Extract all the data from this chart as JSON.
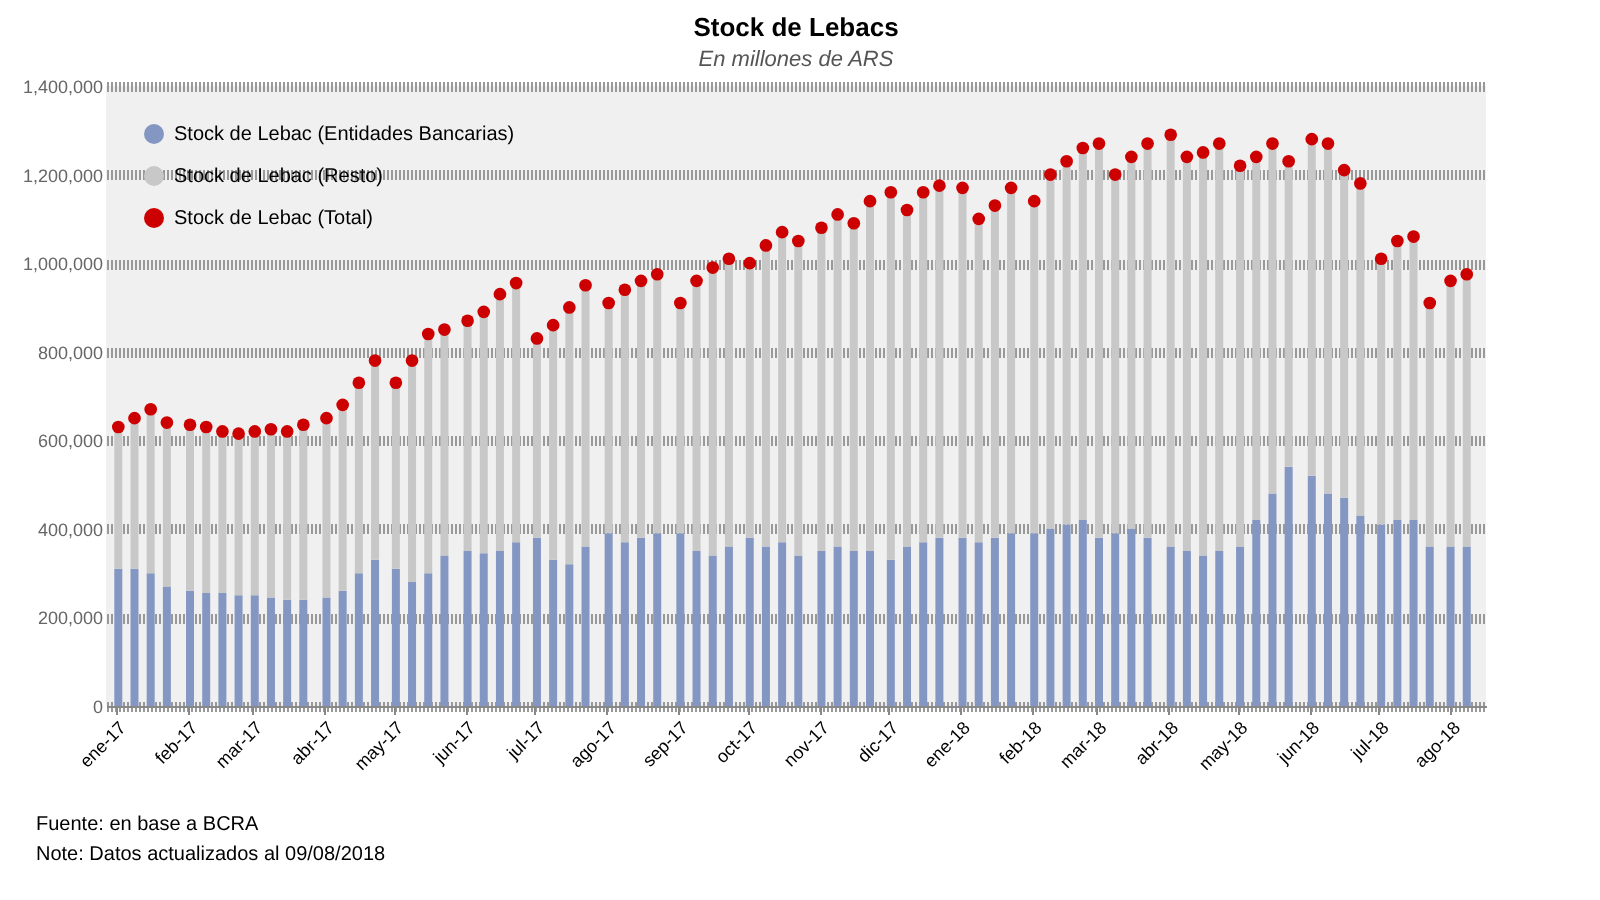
{
  "chart_data": {
    "type": "bar",
    "title": "Stock de Lebacs",
    "subtitle": "En millones de ARS",
    "stacked": true,
    "x": [
      "2017-01-02",
      "2017-01-09",
      "2017-01-16",
      "2017-01-23",
      "2017-02-02",
      "2017-02-09",
      "2017-02-16",
      "2017-02-23",
      "2017-03-02",
      "2017-03-09",
      "2017-03-16",
      "2017-03-23",
      "2017-04-02",
      "2017-04-09",
      "2017-04-16",
      "2017-04-23",
      "2017-05-02",
      "2017-05-09",
      "2017-05-16",
      "2017-05-23",
      "2017-06-02",
      "2017-06-09",
      "2017-06-16",
      "2017-06-23",
      "2017-07-02",
      "2017-07-09",
      "2017-07-16",
      "2017-07-23",
      "2017-08-02",
      "2017-08-09",
      "2017-08-16",
      "2017-08-23",
      "2017-09-02",
      "2017-09-09",
      "2017-09-16",
      "2017-09-23",
      "2017-10-02",
      "2017-10-09",
      "2017-10-16",
      "2017-10-23",
      "2017-11-02",
      "2017-11-09",
      "2017-11-16",
      "2017-11-23",
      "2017-12-02",
      "2017-12-09",
      "2017-12-16",
      "2017-12-23",
      "2018-01-02",
      "2018-01-09",
      "2018-01-16",
      "2018-01-23",
      "2018-02-02",
      "2018-02-09",
      "2018-02-16",
      "2018-02-23",
      "2018-03-02",
      "2018-03-09",
      "2018-03-16",
      "2018-03-23",
      "2018-04-02",
      "2018-04-09",
      "2018-04-16",
      "2018-04-23",
      "2018-05-02",
      "2018-05-09",
      "2018-05-16",
      "2018-05-23",
      "2018-06-02",
      "2018-06-09",
      "2018-06-16",
      "2018-06-23",
      "2018-07-02",
      "2018-07-09",
      "2018-07-16",
      "2018-07-23",
      "2018-08-01",
      "2018-08-08"
    ],
    "series": [
      {
        "name": "Stock de Lebac (Entidades Bancarias)",
        "color": "#8496c2",
        "values": [
          310000,
          310000,
          300000,
          270000,
          260000,
          255000,
          255000,
          250000,
          250000,
          245000,
          240000,
          240000,
          245000,
          260000,
          300000,
          330000,
          310000,
          280000,
          300000,
          340000,
          350000,
          345000,
          350000,
          370000,
          380000,
          330000,
          320000,
          360000,
          390000,
          370000,
          380000,
          390000,
          390000,
          350000,
          340000,
          360000,
          380000,
          360000,
          370000,
          340000,
          350000,
          360000,
          350000,
          350000,
          330000,
          360000,
          370000,
          380000,
          380000,
          370000,
          380000,
          390000,
          390000,
          400000,
          410000,
          420000,
          380000,
          390000,
          400000,
          380000,
          360000,
          350000,
          340000,
          350000,
          360000,
          420000,
          480000,
          540000,
          520000,
          480000,
          470000,
          430000,
          410000,
          420000,
          420000,
          360000,
          360000,
          360000
        ]
      },
      {
        "name": "Stock de Lebac (Resto)",
        "color": "#c8c8c8",
        "values": [
          320000,
          340000,
          370000,
          370000,
          375000,
          375000,
          365000,
          365000,
          370000,
          380000,
          380000,
          395000,
          405000,
          420000,
          430000,
          450000,
          420000,
          500000,
          540000,
          510000,
          520000,
          545000,
          580000,
          585000,
          450000,
          530000,
          580000,
          590000,
          520000,
          570000,
          580000,
          585000,
          520000,
          610000,
          650000,
          650000,
          620000,
          680000,
          700000,
          710000,
          730000,
          750000,
          740000,
          790000,
          830000,
          760000,
          790000,
          795000,
          790000,
          730000,
          750000,
          780000,
          750000,
          800000,
          820000,
          840000,
          890000,
          810000,
          840000,
          890000,
          930000,
          890000,
          910000,
          920000,
          860000,
          820000,
          790000,
          690000,
          760000,
          790000,
          740000,
          750000,
          600000,
          630000,
          640000,
          550000,
          600000,
          615000
        ]
      },
      {
        "name": "Stock de Lebac (Total)",
        "type": "scatter",
        "color": "#cc0000",
        "values": [
          630000,
          650000,
          670000,
          640000,
          635000,
          630000,
          620000,
          615000,
          620000,
          625000,
          620000,
          635000,
          650000,
          680000,
          730000,
          780000,
          730000,
          780000,
          840000,
          850000,
          870000,
          890000,
          930000,
          955000,
          830000,
          860000,
          900000,
          950000,
          910000,
          940000,
          960000,
          975000,
          910000,
          960000,
          990000,
          1010000,
          1000000,
          1040000,
          1070000,
          1050000,
          1080000,
          1110000,
          1090000,
          1140000,
          1160000,
          1120000,
          1160000,
          1175000,
          1170000,
          1100000,
          1130000,
          1170000,
          1140000,
          1200000,
          1230000,
          1260000,
          1270000,
          1200000,
          1240000,
          1270000,
          1290000,
          1240000,
          1250000,
          1270000,
          1220000,
          1240000,
          1270000,
          1230000,
          1280000,
          1270000,
          1210000,
          1180000,
          1010000,
          1050000,
          1060000,
          910000,
          960000,
          975000
        ]
      }
    ],
    "xlim": [
      "2017-01-01",
      "2018-08-12"
    ],
    "xticks": [
      {
        "value": "2017-01-01",
        "label": "ene-17"
      },
      {
        "value": "2017-02-01",
        "label": "feb-17"
      },
      {
        "value": "2017-03-01",
        "label": "mar-17"
      },
      {
        "value": "2017-04-01",
        "label": "abr-17"
      },
      {
        "value": "2017-05-01",
        "label": "may-17"
      },
      {
        "value": "2017-06-01",
        "label": "jun-17"
      },
      {
        "value": "2017-07-01",
        "label": "jul-17"
      },
      {
        "value": "2017-08-01",
        "label": "ago-17"
      },
      {
        "value": "2017-09-01",
        "label": "sep-17"
      },
      {
        "value": "2017-10-01",
        "label": "oct-17"
      },
      {
        "value": "2017-11-01",
        "label": "nov-17"
      },
      {
        "value": "2017-12-01",
        "label": "dic-17"
      },
      {
        "value": "2018-01-01",
        "label": "ene-18"
      },
      {
        "value": "2018-02-01",
        "label": "feb-18"
      },
      {
        "value": "2018-03-01",
        "label": "mar-18"
      },
      {
        "value": "2018-04-01",
        "label": "abr-18"
      },
      {
        "value": "2018-05-01",
        "label": "may-18"
      },
      {
        "value": "2018-06-01",
        "label": "jun-18"
      },
      {
        "value": "2018-07-01",
        "label": "jul-18"
      },
      {
        "value": "2018-08-01",
        "label": "ago-18"
      }
    ],
    "ylim": [
      0,
      1400000
    ],
    "yticks": [
      0,
      {
        "value": 200000,
        "label": "200,000"
      },
      {
        "value": 400000,
        "label": "400,000"
      },
      {
        "value": 600000,
        "label": "600,000"
      },
      {
        "value": 800000,
        "label": "800,000"
      },
      {
        "value": 1000000,
        "label": "1,000,000"
      },
      {
        "value": 1200000,
        "label": "1,200,000"
      },
      {
        "value": 1400000,
        "label": "1,400,000"
      }
    ],
    "grid": "y",
    "legend": "top left",
    "marker": "circle",
    "annotations": [
      "Fuente: en base a BCRA",
      "Note: Datos actualizados al 09/08/2018"
    ]
  }
}
